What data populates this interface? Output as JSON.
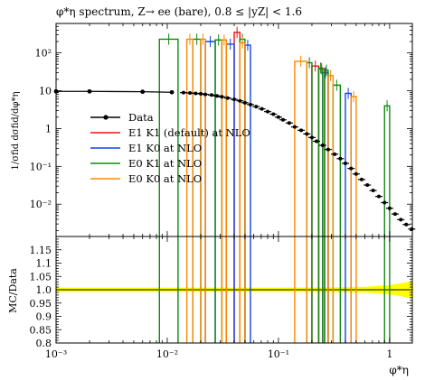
{
  "chart_data": {
    "type": "line",
    "title": "φ*η spectrum, Z→ ee (bare), 0.8 ≤ |yZ| < 1.6",
    "xlabel": "φ*η",
    "x_scale": "log",
    "xlim": [
      0.001,
      1.6
    ],
    "main_panel": {
      "ylabel": "1/σfid dσfid/dφ*η",
      "y_scale": "log",
      "ylim": [
        0.0014,
        600
      ],
      "yticks": [
        {
          "value": 0.01,
          "label": "10⁻²"
        },
        {
          "value": 0.1,
          "label": "10⁻¹"
        },
        {
          "value": 1,
          "label": "1"
        },
        {
          "value": 10,
          "label": "10"
        },
        {
          "value": 100,
          "label": "10²"
        }
      ]
    },
    "ratio_panel": {
      "ylabel": "MC/Data",
      "ylim": [
        0.8,
        1.2
      ],
      "yticks": [
        0.8,
        0.85,
        0.9,
        0.95,
        1.0,
        1.05,
        1.1,
        1.15
      ]
    },
    "xticks": [
      {
        "value": 0.001,
        "label": "10⁻³"
      },
      {
        "value": 0.01,
        "label": "10⁻²"
      },
      {
        "value": 0.1,
        "label": "10⁻¹"
      },
      {
        "value": 1,
        "label": "1"
      }
    ],
    "legend_position": "center-left",
    "data": {
      "name": "Data",
      "color": "#000000",
      "x": [
        0.001,
        0.002,
        0.006,
        0.011,
        0.014,
        0.016,
        0.018,
        0.02,
        0.022,
        0.025,
        0.028,
        0.031,
        0.035,
        0.04,
        0.045,
        0.05,
        0.056,
        0.063,
        0.071,
        0.08,
        0.09,
        0.1,
        0.11,
        0.125,
        0.14,
        0.16,
        0.18,
        0.2,
        0.22,
        0.25,
        0.28,
        0.32,
        0.36,
        0.4,
        0.45,
        0.5,
        0.56,
        0.63,
        0.71,
        0.8,
        0.9,
        1.0,
        1.12,
        1.26,
        1.41,
        1.58,
        1.78,
        2.0
      ],
      "y": [
        9.6,
        9.6,
        9.4,
        9.1,
        8.9,
        8.7,
        8.5,
        8.3,
        8.0,
        7.7,
        7.3,
        6.9,
        6.4,
        5.9,
        5.4,
        4.8,
        4.3,
        3.8,
        3.3,
        2.8,
        2.4,
        2.0,
        1.7,
        1.4,
        1.1,
        0.9,
        0.72,
        0.58,
        0.46,
        0.36,
        0.28,
        0.21,
        0.16,
        0.12,
        0.088,
        0.063,
        0.045,
        0.032,
        0.023,
        0.016,
        0.011,
        0.0078,
        0.0055,
        0.0039,
        0.0029,
        0.0022,
        0.0017,
        0.0014
      ],
      "ratio_band": [
        {
          "x": 0.001,
          "err": 0.008
        },
        {
          "x": 0.1,
          "err": 0.008
        },
        {
          "x": 0.3,
          "err": 0.009
        },
        {
          "x": 0.6,
          "err": 0.011
        },
        {
          "x": 1.0,
          "err": 0.017
        },
        {
          "x": 1.6,
          "err": 0.032
        }
      ]
    },
    "series": [
      {
        "name": "E1 K1 (default) at NLO",
        "color": "#ee1111",
        "bins": [
          [
            0.04,
            0.045,
            350
          ],
          [
            0.2,
            0.23,
            45
          ],
          [
            0.23,
            0.26,
            38
          ]
        ]
      },
      {
        "name": "E1 K0 at NLO",
        "color": "#1144ee",
        "bins": [
          [
            0.022,
            0.027,
            200
          ],
          [
            0.034,
            0.04,
            170
          ],
          [
            0.05,
            0.056,
            160
          ],
          [
            0.25,
            0.28,
            30
          ],
          [
            0.4,
            0.45,
            8.5
          ]
        ]
      },
      {
        "name": "E0 K1 at NLO",
        "color": "#118811",
        "bins": [
          [
            0.0085,
            0.0125,
            230
          ],
          [
            0.017,
            0.02,
            230
          ],
          [
            0.027,
            0.031,
            220
          ],
          [
            0.045,
            0.05,
            230
          ],
          [
            0.18,
            0.2,
            55
          ],
          [
            0.23,
            0.25,
            40
          ],
          [
            0.26,
            0.28,
            35
          ],
          [
            0.31,
            0.36,
            14
          ],
          [
            0.9,
            1.0,
            4.0
          ]
        ]
      },
      {
        "name": "E0 K0 at NLO",
        "color": "#ff8800",
        "bins": [
          [
            0.015,
            0.017,
            230
          ],
          [
            0.02,
            0.022,
            230
          ],
          [
            0.031,
            0.034,
            220
          ],
          [
            0.045,
            0.05,
            185
          ],
          [
            0.14,
            0.18,
            60
          ],
          [
            0.28,
            0.31,
            25
          ],
          [
            0.45,
            0.5,
            7.0
          ]
        ]
      }
    ]
  }
}
